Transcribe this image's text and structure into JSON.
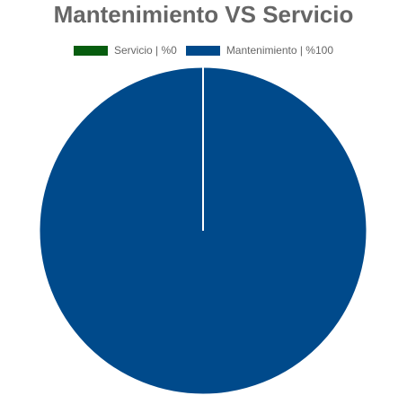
{
  "chart_data": {
    "type": "pie",
    "title": "Mantenimiento VS Servicio",
    "legend_position": "top",
    "slices": [
      {
        "label": "Servicio | %0",
        "value": 0,
        "color": "#075d0f"
      },
      {
        "label": "Mantenimiento | %100",
        "value": 100,
        "color": "#004a8b"
      }
    ],
    "slice_border_color": "#ffffff"
  }
}
